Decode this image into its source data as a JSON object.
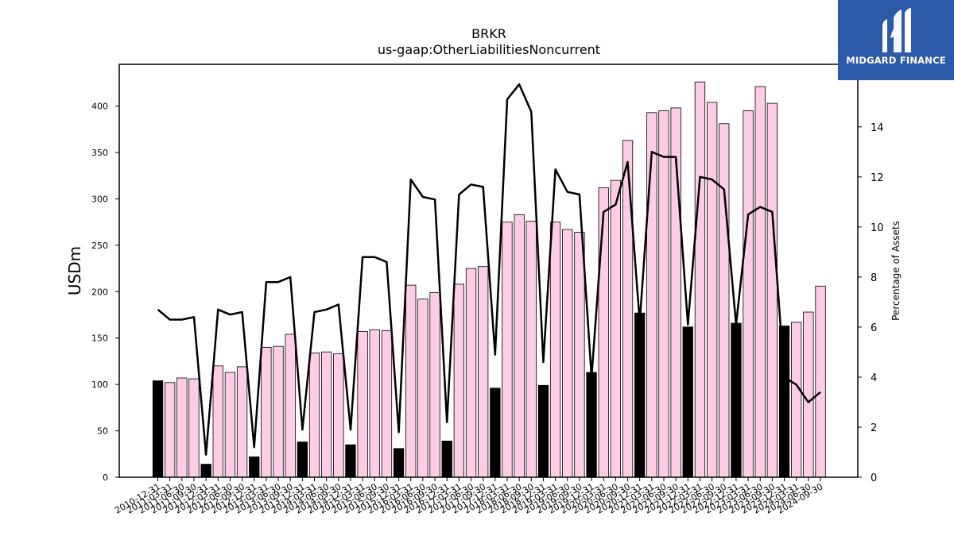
{
  "brand": {
    "name": "MIDGARD FINANCE",
    "color": "#2c5aa8",
    "logo_icon": "midgard-m-logo-icon"
  },
  "chart_data": {
    "type": "bar",
    "title": "BRKR",
    "subtitle": "us-gaap:OtherLiabilitiesNoncurrent",
    "ylabel": "USDm",
    "y2label": "Percentage of Assets",
    "ylim": [
      0,
      445
    ],
    "y2lim": [
      0,
      16.5
    ],
    "yticks": [
      0,
      50,
      100,
      150,
      200,
      250,
      300,
      350,
      400
    ],
    "y2ticks": [
      0,
      2,
      4,
      6,
      8,
      10,
      12,
      14
    ],
    "colors": {
      "annual_bar": "#000000",
      "quarterly_bar": "#ffcce6",
      "line": "#000000"
    },
    "categories": [
      "2010-12-31",
      "2011-03-31",
      "2011-06-30",
      "2011-09-30",
      "2011-12-31",
      "2012-03-31",
      "2012-06-30",
      "2012-09-30",
      "2012-12-31",
      "2013-03-31",
      "2013-06-30",
      "2013-09-30",
      "2013-12-31",
      "2014-03-31",
      "2014-06-30",
      "2014-09-30",
      "2014-12-31",
      "2015-03-31",
      "2015-06-30",
      "2015-09-30",
      "2015-12-31",
      "2016-03-31",
      "2016-06-30",
      "2016-09-30",
      "2016-12-31",
      "2017-03-31",
      "2017-06-30",
      "2017-09-30",
      "2017-12-31",
      "2018-03-31",
      "2018-06-30",
      "2018-09-30",
      "2018-12-31",
      "2019-03-31",
      "2019-06-30",
      "2019-09-30",
      "2019-12-31",
      "2020-03-31",
      "2020-06-30",
      "2020-09-30",
      "2020-12-31",
      "2021-03-31",
      "2021-06-30",
      "2021-09-30",
      "2021-12-31",
      "2022-03-31",
      "2022-06-30",
      "2022-09-30",
      "2022-12-31",
      "2023-03-31",
      "2023-06-30",
      "2023-09-30",
      "2023-12-31",
      "2024-03-31",
      "2024-06-30",
      "2024-09-30"
    ],
    "series": [
      {
        "type": "bar",
        "values": [
          104,
          102,
          107,
          106,
          14,
          120,
          113,
          119,
          22,
          140,
          141,
          154,
          38,
          134,
          135,
          133,
          35,
          157,
          159,
          158,
          31,
          207,
          192,
          199,
          39,
          208,
          225,
          227,
          96,
          275,
          283,
          276,
          99,
          275,
          267,
          264,
          113,
          312,
          320,
          363,
          177,
          393,
          395,
          398,
          162,
          426,
          404,
          381,
          166,
          395,
          421,
          403,
          163,
          167,
          178,
          206
        ],
        "annual": [
          true,
          false,
          false,
          false,
          true,
          false,
          false,
          false,
          true,
          false,
          false,
          false,
          true,
          false,
          false,
          false,
          true,
          false,
          false,
          false,
          true,
          false,
          false,
          false,
          true,
          false,
          false,
          false,
          true,
          false,
          false,
          false,
          true,
          false,
          false,
          false,
          true,
          false,
          false,
          false,
          true,
          false,
          false,
          false,
          true,
          false,
          false,
          false,
          true,
          false,
          false,
          false,
          true,
          false,
          false,
          false
        ]
      },
      {
        "type": "line",
        "axis": "right",
        "values": [
          6.7,
          6.3,
          6.3,
          6.4,
          0.9,
          6.7,
          6.5,
          6.6,
          1.2,
          7.8,
          7.8,
          8.0,
          1.9,
          6.6,
          6.7,
          6.9,
          1.9,
          8.8,
          8.8,
          8.6,
          1.8,
          11.9,
          11.2,
          11.1,
          2.2,
          11.3,
          11.7,
          11.6,
          4.9,
          15.1,
          15.7,
          14.6,
          4.6,
          12.3,
          11.4,
          11.3,
          4.0,
          10.6,
          10.9,
          12.6,
          6.2,
          13.0,
          12.8,
          12.8,
          6.1,
          12.0,
          11.9,
          11.5,
          6.1,
          10.5,
          10.8,
          10.6,
          4.0,
          3.7,
          3.0,
          3.4
        ]
      }
    ]
  }
}
